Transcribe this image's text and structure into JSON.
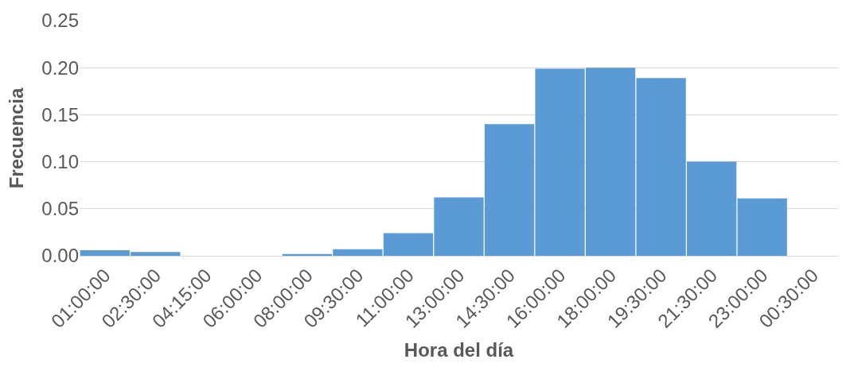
{
  "chart_data": {
    "type": "bar",
    "xlabel": "Hora del día",
    "ylabel": "Frecuencia",
    "categories": [
      "01:00:00",
      "02:30:00",
      "04:15:00",
      "06:00:00",
      "08:00:00",
      "09:30:00",
      "11:00:00",
      "13:00:00",
      "14:30:00",
      "16:00:00",
      "18:00:00",
      "19:30:00",
      "21:30:00",
      "23:00:00",
      "00:30:00"
    ],
    "values": [
      0.006,
      0.004,
      0,
      0,
      0.002,
      0.007,
      0.024,
      0.062,
      0.14,
      0.199,
      0.2,
      0.189,
      0.1,
      0.061,
      0
    ],
    "color": "#5b9bd5",
    "ylim": [
      0,
      0.25
    ],
    "yticks": [
      {
        "value": 0,
        "label": "0.00"
      },
      {
        "value": 0.05,
        "label": "0.05"
      },
      {
        "value": 0.1,
        "label": "0.10"
      },
      {
        "value": 0.15,
        "label": "0.15"
      },
      {
        "value": 0.2,
        "label": "0.20"
      },
      {
        "value": 0.25,
        "label": "0.25"
      }
    ],
    "grid": "y"
  }
}
